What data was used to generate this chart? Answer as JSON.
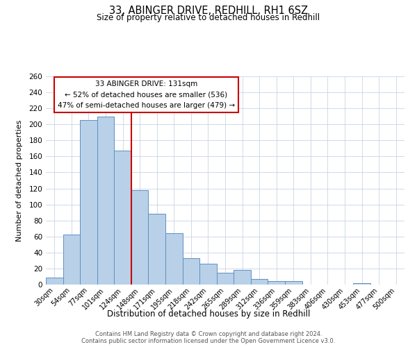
{
  "title": "33, ABINGER DRIVE, REDHILL, RH1 6SZ",
  "subtitle": "Size of property relative to detached houses in Redhill",
  "xlabel": "Distribution of detached houses by size in Redhill",
  "ylabel": "Number of detached properties",
  "bar_labels": [
    "30sqm",
    "54sqm",
    "77sqm",
    "101sqm",
    "124sqm",
    "148sqm",
    "171sqm",
    "195sqm",
    "218sqm",
    "242sqm",
    "265sqm",
    "289sqm",
    "312sqm",
    "336sqm",
    "359sqm",
    "383sqm",
    "406sqm",
    "430sqm",
    "453sqm",
    "477sqm",
    "500sqm"
  ],
  "bar_values": [
    9,
    62,
    205,
    210,
    167,
    118,
    88,
    64,
    33,
    26,
    15,
    18,
    7,
    4,
    4,
    0,
    0,
    0,
    2,
    0,
    0
  ],
  "bar_color": "#b8d0e8",
  "bar_edge_color": "#6090c0",
  "background_color": "#ffffff",
  "grid_color": "#c8d4e4",
  "vline_color": "#cc0000",
  "vline_index": 4,
  "annotation_title": "33 ABINGER DRIVE: 131sqm",
  "annotation_line1": "← 52% of detached houses are smaller (536)",
  "annotation_line2": "47% of semi-detached houses are larger (479) →",
  "annotation_box_edge": "#cc0000",
  "ylim": [
    0,
    260
  ],
  "yticks": [
    0,
    20,
    40,
    60,
    80,
    100,
    120,
    140,
    160,
    180,
    200,
    220,
    240,
    260
  ],
  "footnote1": "Contains HM Land Registry data © Crown copyright and database right 2024.",
  "footnote2": "Contains public sector information licensed under the Open Government Licence v3.0."
}
